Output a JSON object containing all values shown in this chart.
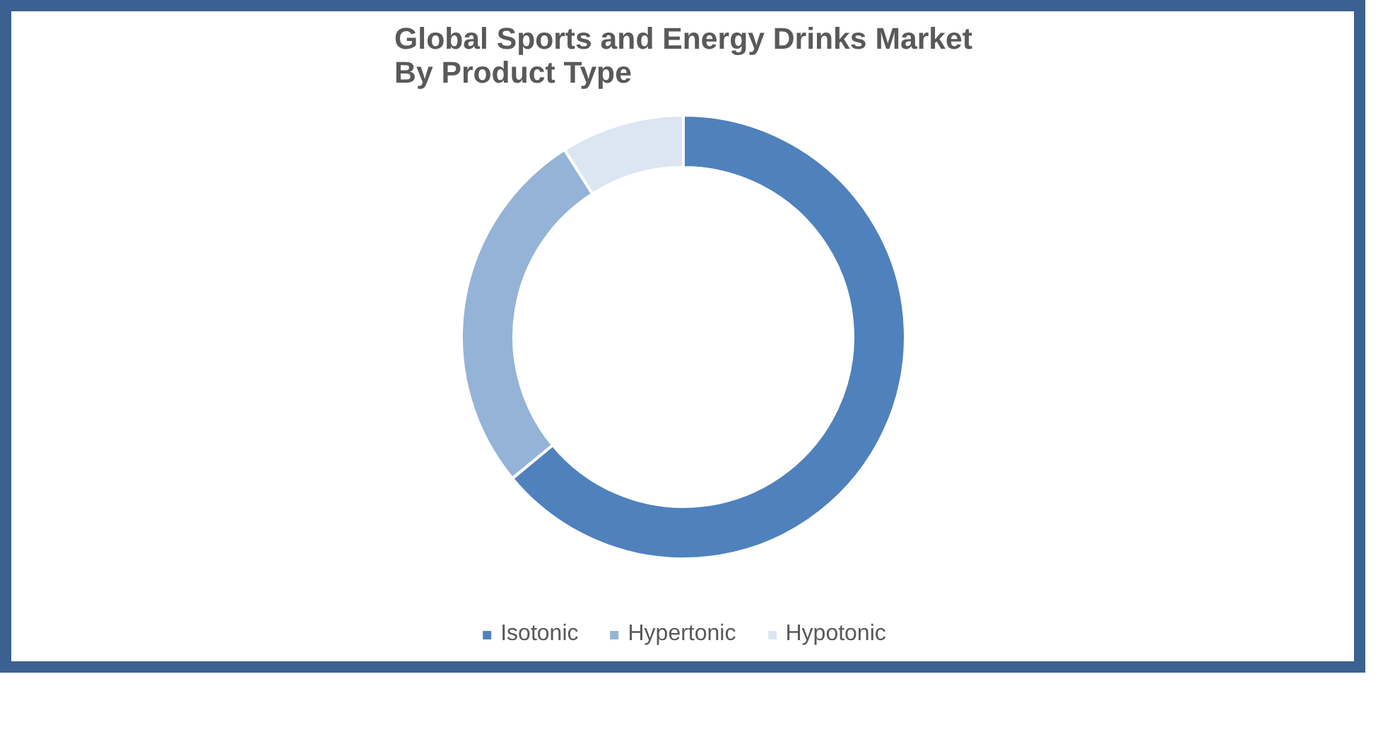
{
  "chart_data": {
    "type": "donut",
    "title": "Global Sports and Energy Drinks Market By Product Type",
    "categories": [
      "Isotonic",
      "Hypertonic",
      "Hypotonic"
    ],
    "values": [
      64,
      27,
      9
    ],
    "colors": [
      "#4f81bd",
      "#95b3d7",
      "#dce6f2"
    ],
    "legend": "bottom"
  }
}
